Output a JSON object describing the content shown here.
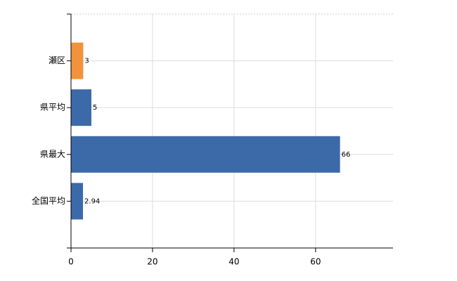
{
  "chart_data": {
    "type": "bar",
    "orientation": "horizontal",
    "categories": [
      "瀬区",
      "県平均",
      "県最大",
      "全国平均"
    ],
    "values": [
      3,
      5,
      66,
      2.94
    ],
    "colors": [
      "#f0933a",
      "#3c6aa8",
      "#3c6aa8",
      "#3c6aa8"
    ],
    "xlim": [
      0,
      79
    ],
    "xticks": [
      0,
      20,
      40,
      60
    ],
    "grid": true
  }
}
